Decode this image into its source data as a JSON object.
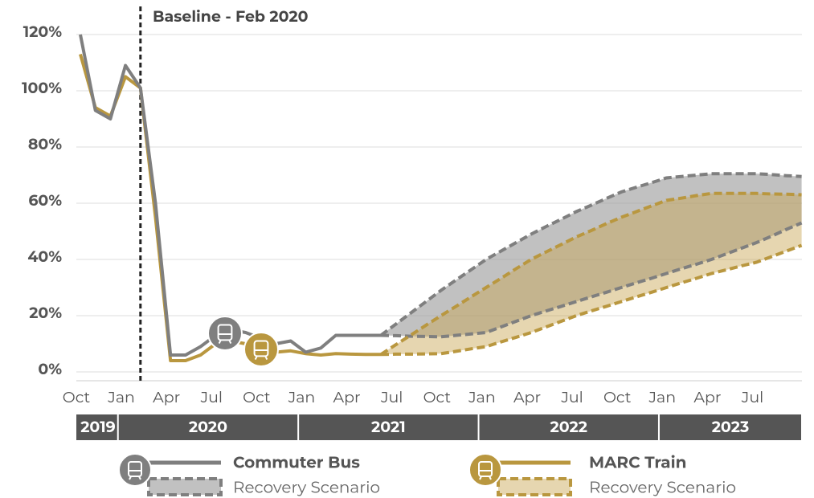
{
  "chart_data": {
    "type": "line",
    "annotation": {
      "text": "Baseline - Feb 2020",
      "x": 4
    },
    "categories": [
      "Oct",
      null,
      null,
      "Jan",
      null,
      null,
      "Apr",
      null,
      null,
      "Jul",
      null,
      null,
      "Oct",
      null,
      null,
      "Jan",
      null,
      null,
      "Apr",
      null,
      null,
      "Jul",
      null,
      null,
      "Oct",
      null,
      null,
      "Jan",
      null,
      null,
      "Apr",
      null,
      null,
      "Jul",
      null,
      null,
      "Oct",
      null,
      null,
      "Jan",
      null,
      null,
      "Apr",
      null,
      null,
      "Jul",
      null,
      null,
      null
    ],
    "years": [
      "2019",
      "2020",
      "2021",
      "2022",
      "2023"
    ],
    "ylim": [
      0,
      120
    ],
    "yticks": [
      {
        "value": 0,
        "label": "0%"
      },
      {
        "value": 20,
        "label": "20%"
      },
      {
        "value": 40,
        "label": "40%"
      },
      {
        "value": 60,
        "label": "60%"
      },
      {
        "value": 80,
        "label": "80%"
      },
      {
        "value": 100,
        "label": "100%"
      },
      {
        "value": 120,
        "label": "120%"
      }
    ],
    "grid": true,
    "series": [
      {
        "name": "Commuter Bus",
        "color": "#7f7f7f",
        "band_color": "rgba(160,160,160,0.65)",
        "values": [
          120,
          93,
          90,
          109,
          101,
          60,
          6,
          6,
          9,
          13,
          15,
          14,
          12,
          10,
          11,
          7,
          8.5,
          13,
          13,
          13,
          13,
          null,
          null,
          null,
          null,
          null,
          null,
          null,
          null,
          null,
          null,
          null,
          null,
          null,
          null,
          null,
          null,
          null,
          null,
          null,
          null,
          null,
          null,
          null,
          null,
          null,
          null,
          null,
          null
        ],
        "scenario": {
          "name": "Recovery Scenario",
          "upper": [
            null,
            null,
            null,
            null,
            null,
            null,
            null,
            null,
            null,
            null,
            null,
            null,
            null,
            null,
            null,
            null,
            null,
            null,
            null,
            null,
            13,
            17,
            21,
            25,
            29,
            32.7,
            36.3,
            40,
            43,
            46,
            49,
            51.7,
            54.3,
            57,
            59.3,
            61.7,
            64,
            65.7,
            67.3,
            69,
            69.5,
            70,
            70.5,
            70.5,
            70.5,
            70.5,
            70.2,
            69.8,
            69.5
          ],
          "lower": [
            null,
            null,
            null,
            null,
            null,
            null,
            null,
            null,
            null,
            null,
            null,
            null,
            null,
            null,
            null,
            null,
            null,
            null,
            null,
            null,
            13,
            12.9,
            12.7,
            12.6,
            12.5,
            13,
            13.5,
            14,
            16,
            18,
            20,
            21.7,
            23.3,
            25,
            26.7,
            28.3,
            30,
            31.7,
            33.3,
            35,
            36.7,
            38.3,
            40,
            42,
            44,
            46,
            48.3,
            50.7,
            53
          ]
        }
      },
      {
        "name": "MARC Train",
        "color": "#b9973f",
        "band_color": "rgba(200,165,80,0.45)",
        "values": [
          113,
          94,
          91,
          105,
          101,
          55,
          4,
          4,
          6,
          10,
          11,
          10,
          9,
          7,
          7.5,
          6.5,
          6,
          6.5,
          6.3,
          6.2,
          6.2,
          null,
          null,
          null,
          null,
          null,
          null,
          null,
          null,
          null,
          null,
          null,
          null,
          null,
          null,
          null,
          null,
          null,
          null,
          null,
          null,
          null,
          null,
          null,
          null,
          null,
          null,
          null,
          null
        ],
        "scenario": {
          "name": "Recovery Scenario",
          "upper": [
            null,
            null,
            null,
            null,
            null,
            null,
            null,
            null,
            null,
            null,
            null,
            null,
            null,
            null,
            null,
            null,
            null,
            null,
            null,
            null,
            6.2,
            9.7,
            13.1,
            16.6,
            20,
            23.3,
            26.7,
            30,
            33.3,
            36.7,
            40,
            42.7,
            45.3,
            48,
            50.3,
            52.7,
            55,
            57,
            59,
            61,
            61.8,
            62.7,
            63.5,
            63.5,
            63.5,
            63.5,
            63.3,
            63.2,
            63
          ],
          "lower": [
            null,
            null,
            null,
            null,
            null,
            null,
            null,
            null,
            null,
            null,
            null,
            null,
            null,
            null,
            null,
            null,
            null,
            null,
            null,
            null,
            6.2,
            6.3,
            6.3,
            6.4,
            6.5,
            7.3,
            8.2,
            9,
            10.7,
            12.3,
            14,
            16,
            18,
            20,
            21.7,
            23.3,
            25,
            26.7,
            28.3,
            30,
            31.7,
            33.3,
            35,
            36.3,
            37.7,
            39,
            41,
            43,
            45
          ]
        }
      }
    ]
  }
}
